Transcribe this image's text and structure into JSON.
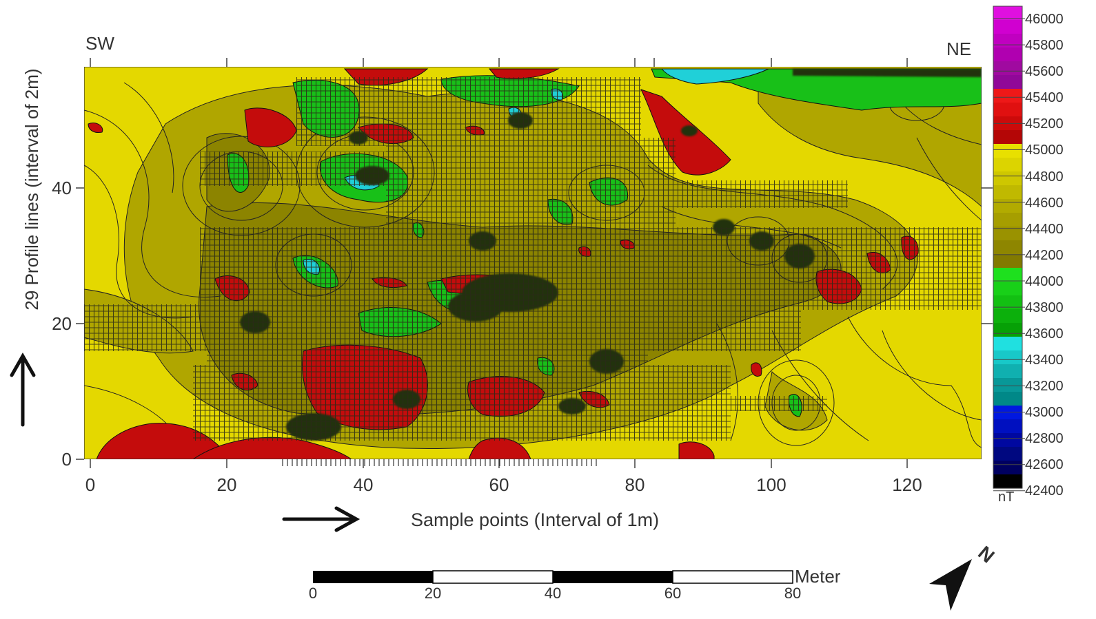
{
  "map": {
    "direction_left": "SW",
    "direction_right": "NE",
    "y_label": "29 Profile lines (interval of 2m)",
    "x_label": "Sample points (Interval of 1m)",
    "x_ticks": [
      "0",
      "20",
      "40",
      "60",
      "80",
      "100",
      "120"
    ],
    "y_ticks": [
      "0",
      "20",
      "40"
    ],
    "x_range": [
      0,
      132
    ],
    "y_range": [
      0,
      58
    ],
    "colors": {
      "high_red": "#c40c0c",
      "yellow": "#e4d800",
      "olive": "#a8a000",
      "green": "#1ec81e",
      "cyan": "#20d0d8",
      "dark": "#1e2a10"
    }
  },
  "legend": {
    "unit": "nT",
    "labels": [
      "46000",
      "45800",
      "45600",
      "45400",
      "45200",
      "45000",
      "44800",
      "44600",
      "44400",
      "44200",
      "44000",
      "43800",
      "43600",
      "43400",
      "43200",
      "43000",
      "42800",
      "42600",
      "42400"
    ],
    "band_colors": [
      "#e010e0",
      "#d000d0",
      "#c000c0",
      "#b000b0",
      "#a00aa0",
      "#900898",
      "#ee1818",
      "#e01010",
      "#cc0a0a",
      "#b40606",
      "#e8e000",
      "#dcd400",
      "#cec700",
      "#c0b900",
      "#b2ab00",
      "#a69e00",
      "#9a9200",
      "#8e8600",
      "#827a00",
      "#1ee01e",
      "#18d018",
      "#12c012",
      "#0cb00c",
      "#06a006",
      "#20e0e0",
      "#18c8c8",
      "#10b0b0",
      "#089898",
      "#008888",
      "#0018e0",
      "#0010c0",
      "#0008a0",
      "#000880",
      "#000060",
      "#000000"
    ]
  },
  "scale_bar": {
    "unit": "Meter",
    "ticks": [
      "0",
      "20",
      "40",
      "60",
      "80"
    ]
  },
  "north_arrow": {
    "label": "N"
  }
}
